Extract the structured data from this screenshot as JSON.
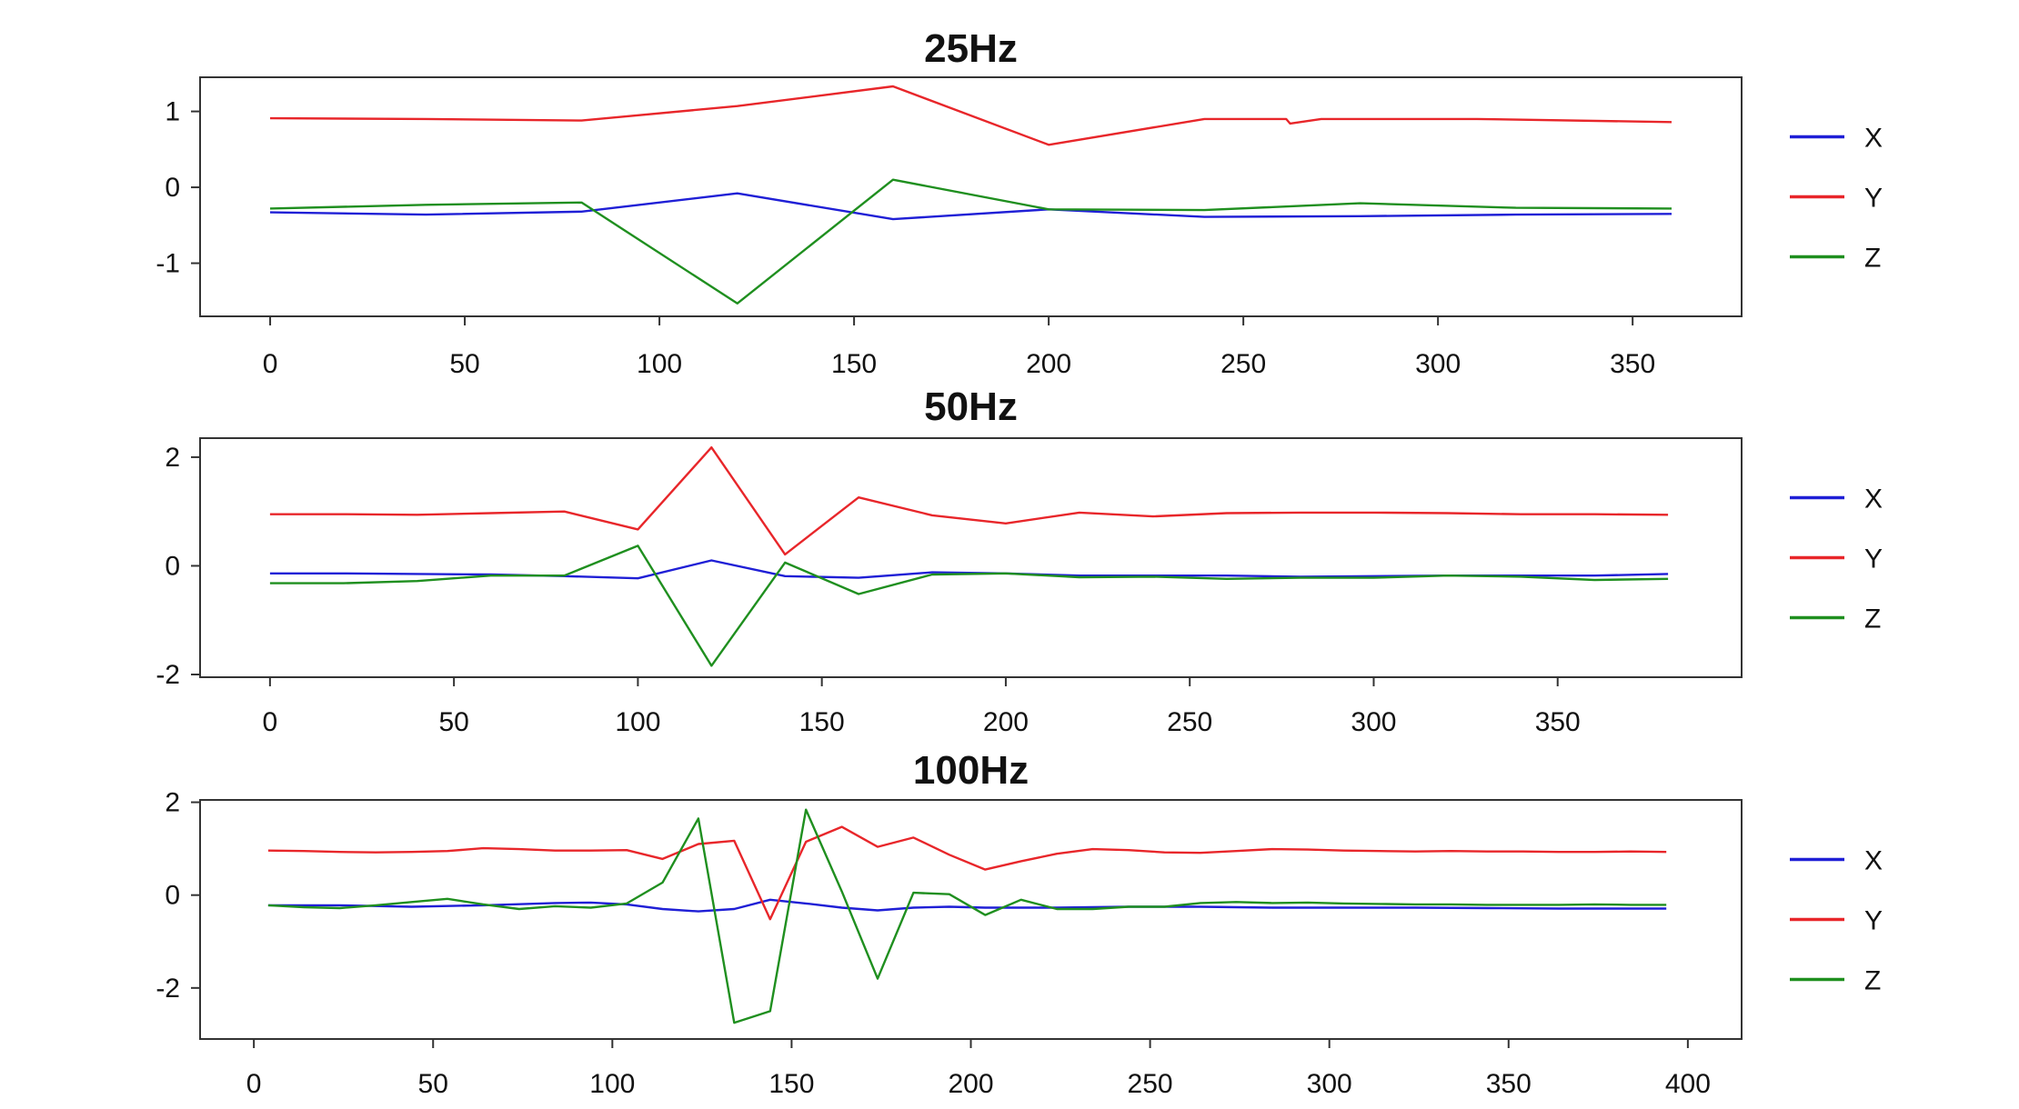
{
  "chart_data": [
    {
      "type": "line",
      "title": "25Hz",
      "xlim": [
        -18,
        378
      ],
      "ylim": [
        -1.7,
        1.45
      ],
      "x_ticks": [
        0,
        50,
        100,
        150,
        200,
        250,
        300,
        350
      ],
      "y_ticks": [
        1,
        0,
        -1
      ],
      "legend_position": "right",
      "series": [
        {
          "name": "X",
          "color": "#1f1fd6",
          "x": [
            0,
            40,
            80,
            120,
            160,
            200,
            240,
            280,
            320,
            360
          ],
          "y": [
            -0.33,
            -0.36,
            -0.32,
            -0.08,
            -0.42,
            -0.29,
            -0.39,
            -0.38,
            -0.36,
            -0.35
          ]
        },
        {
          "name": "Y",
          "color": "#e8262a",
          "x": [
            0,
            40,
            80,
            120,
            160,
            200,
            240,
            261,
            262,
            270,
            280,
            310,
            360
          ],
          "y": [
            0.91,
            0.9,
            0.88,
            1.07,
            1.33,
            0.56,
            0.9,
            0.9,
            0.84,
            0.9,
            0.9,
            0.9,
            0.86
          ]
        },
        {
          "name": "Z",
          "color": "#1f8f1f",
          "x": [
            0,
            40,
            80,
            120,
            160,
            200,
            240,
            280,
            320,
            360
          ],
          "y": [
            -0.28,
            -0.23,
            -0.2,
            -1.53,
            0.1,
            -0.29,
            -0.3,
            -0.21,
            -0.27,
            -0.28
          ]
        }
      ]
    },
    {
      "type": "line",
      "title": "50Hz",
      "xlim": [
        -19,
        400
      ],
      "ylim": [
        -2.05,
        2.35
      ],
      "x_ticks": [
        0,
        50,
        100,
        150,
        200,
        250,
        300,
        350
      ],
      "y_ticks": [
        2,
        0,
        -2
      ],
      "legend_position": "right",
      "series": [
        {
          "name": "X",
          "color": "#1f1fd6",
          "x": [
            0,
            20,
            40,
            60,
            80,
            100,
            120,
            140,
            160,
            180,
            200,
            220,
            240,
            260,
            280,
            300,
            320,
            340,
            360,
            380
          ],
          "y": [
            -0.14,
            -0.14,
            -0.15,
            -0.16,
            -0.19,
            -0.23,
            0.1,
            -0.19,
            -0.22,
            -0.12,
            -0.14,
            -0.18,
            -0.18,
            -0.18,
            -0.2,
            -0.19,
            -0.18,
            -0.18,
            -0.18,
            -0.15
          ]
        },
        {
          "name": "Y",
          "color": "#e8262a",
          "x": [
            0,
            20,
            40,
            60,
            80,
            100,
            120,
            140,
            160,
            180,
            200,
            220,
            240,
            260,
            280,
            300,
            320,
            340,
            360,
            380
          ],
          "y": [
            0.95,
            0.95,
            0.94,
            0.97,
            1.0,
            0.67,
            2.18,
            0.21,
            1.26,
            0.93,
            0.78,
            0.98,
            0.91,
            0.97,
            0.98,
            0.98,
            0.97,
            0.95,
            0.95,
            0.94
          ]
        },
        {
          "name": "Z",
          "color": "#1f8f1f",
          "x": [
            0,
            20,
            40,
            60,
            80,
            100,
            120,
            140,
            160,
            180,
            200,
            220,
            240,
            260,
            280,
            300,
            320,
            340,
            360,
            380
          ],
          "y": [
            -0.32,
            -0.32,
            -0.28,
            -0.18,
            -0.18,
            0.37,
            -1.84,
            0.06,
            -0.52,
            -0.16,
            -0.14,
            -0.21,
            -0.2,
            -0.24,
            -0.22,
            -0.22,
            -0.18,
            -0.2,
            -0.26,
            -0.24
          ]
        }
      ]
    },
    {
      "type": "line",
      "title": "100Hz",
      "xlim": [
        -15,
        415
      ],
      "ylim": [
        -3.1,
        2.05
      ],
      "x_ticks": [
        0,
        50,
        100,
        150,
        200,
        250,
        300,
        350,
        400
      ],
      "y_ticks": [
        2,
        0,
        -2
      ],
      "legend_position": "right",
      "series": [
        {
          "name": "X",
          "color": "#1f1fd6",
          "x": [
            4,
            24,
            44,
            64,
            84,
            94,
            104,
            114,
            124,
            134,
            144,
            154,
            164,
            174,
            184,
            194,
            204,
            224,
            244,
            264,
            284,
            304,
            324,
            344,
            364,
            384,
            394
          ],
          "y": [
            -0.22,
            -0.22,
            -0.25,
            -0.22,
            -0.17,
            -0.16,
            -0.2,
            -0.3,
            -0.35,
            -0.3,
            -0.1,
            -0.18,
            -0.27,
            -0.33,
            -0.27,
            -0.25,
            -0.27,
            -0.27,
            -0.25,
            -0.25,
            -0.27,
            -0.27,
            -0.27,
            -0.28,
            -0.29,
            -0.29,
            -0.29
          ]
        },
        {
          "name": "Y",
          "color": "#e8262a",
          "x": [
            4,
            14,
            24,
            34,
            44,
            54,
            64,
            74,
            84,
            94,
            104,
            114,
            124,
            134,
            144,
            154,
            164,
            174,
            184,
            194,
            204,
            214,
            224,
            234,
            244,
            254,
            264,
            274,
            284,
            294,
            304,
            314,
            324,
            334,
            344,
            354,
            364,
            374,
            384,
            394
          ],
          "y": [
            0.96,
            0.95,
            0.93,
            0.92,
            0.93,
            0.95,
            1.01,
            0.99,
            0.96,
            0.96,
            0.97,
            0.78,
            1.1,
            1.17,
            -0.52,
            1.15,
            1.47,
            1.04,
            1.24,
            0.87,
            0.55,
            0.73,
            0.89,
            0.99,
            0.97,
            0.92,
            0.91,
            0.95,
            0.99,
            0.98,
            0.96,
            0.95,
            0.94,
            0.95,
            0.94,
            0.94,
            0.93,
            0.93,
            0.94,
            0.93
          ]
        },
        {
          "name": "Z",
          "color": "#1f8f1f",
          "x": [
            4,
            14,
            24,
            34,
            44,
            54,
            64,
            74,
            84,
            94,
            104,
            114,
            124,
            134,
            144,
            154,
            164,
            174,
            184,
            194,
            204,
            214,
            224,
            234,
            244,
            254,
            264,
            274,
            284,
            294,
            304,
            314,
            324,
            334,
            344,
            354,
            364,
            374,
            384,
            394
          ],
          "y": [
            -0.22,
            -0.26,
            -0.28,
            -0.22,
            -0.15,
            -0.08,
            -0.2,
            -0.3,
            -0.24,
            -0.27,
            -0.18,
            0.27,
            1.65,
            -2.75,
            -2.5,
            1.84,
            0.08,
            -1.8,
            0.05,
            0.02,
            -0.43,
            -0.1,
            -0.3,
            -0.3,
            -0.25,
            -0.25,
            -0.17,
            -0.15,
            -0.17,
            -0.16,
            -0.18,
            -0.19,
            -0.2,
            -0.2,
            -0.21,
            -0.21,
            -0.21,
            -0.2,
            -0.21,
            -0.21
          ]
        }
      ]
    }
  ]
}
